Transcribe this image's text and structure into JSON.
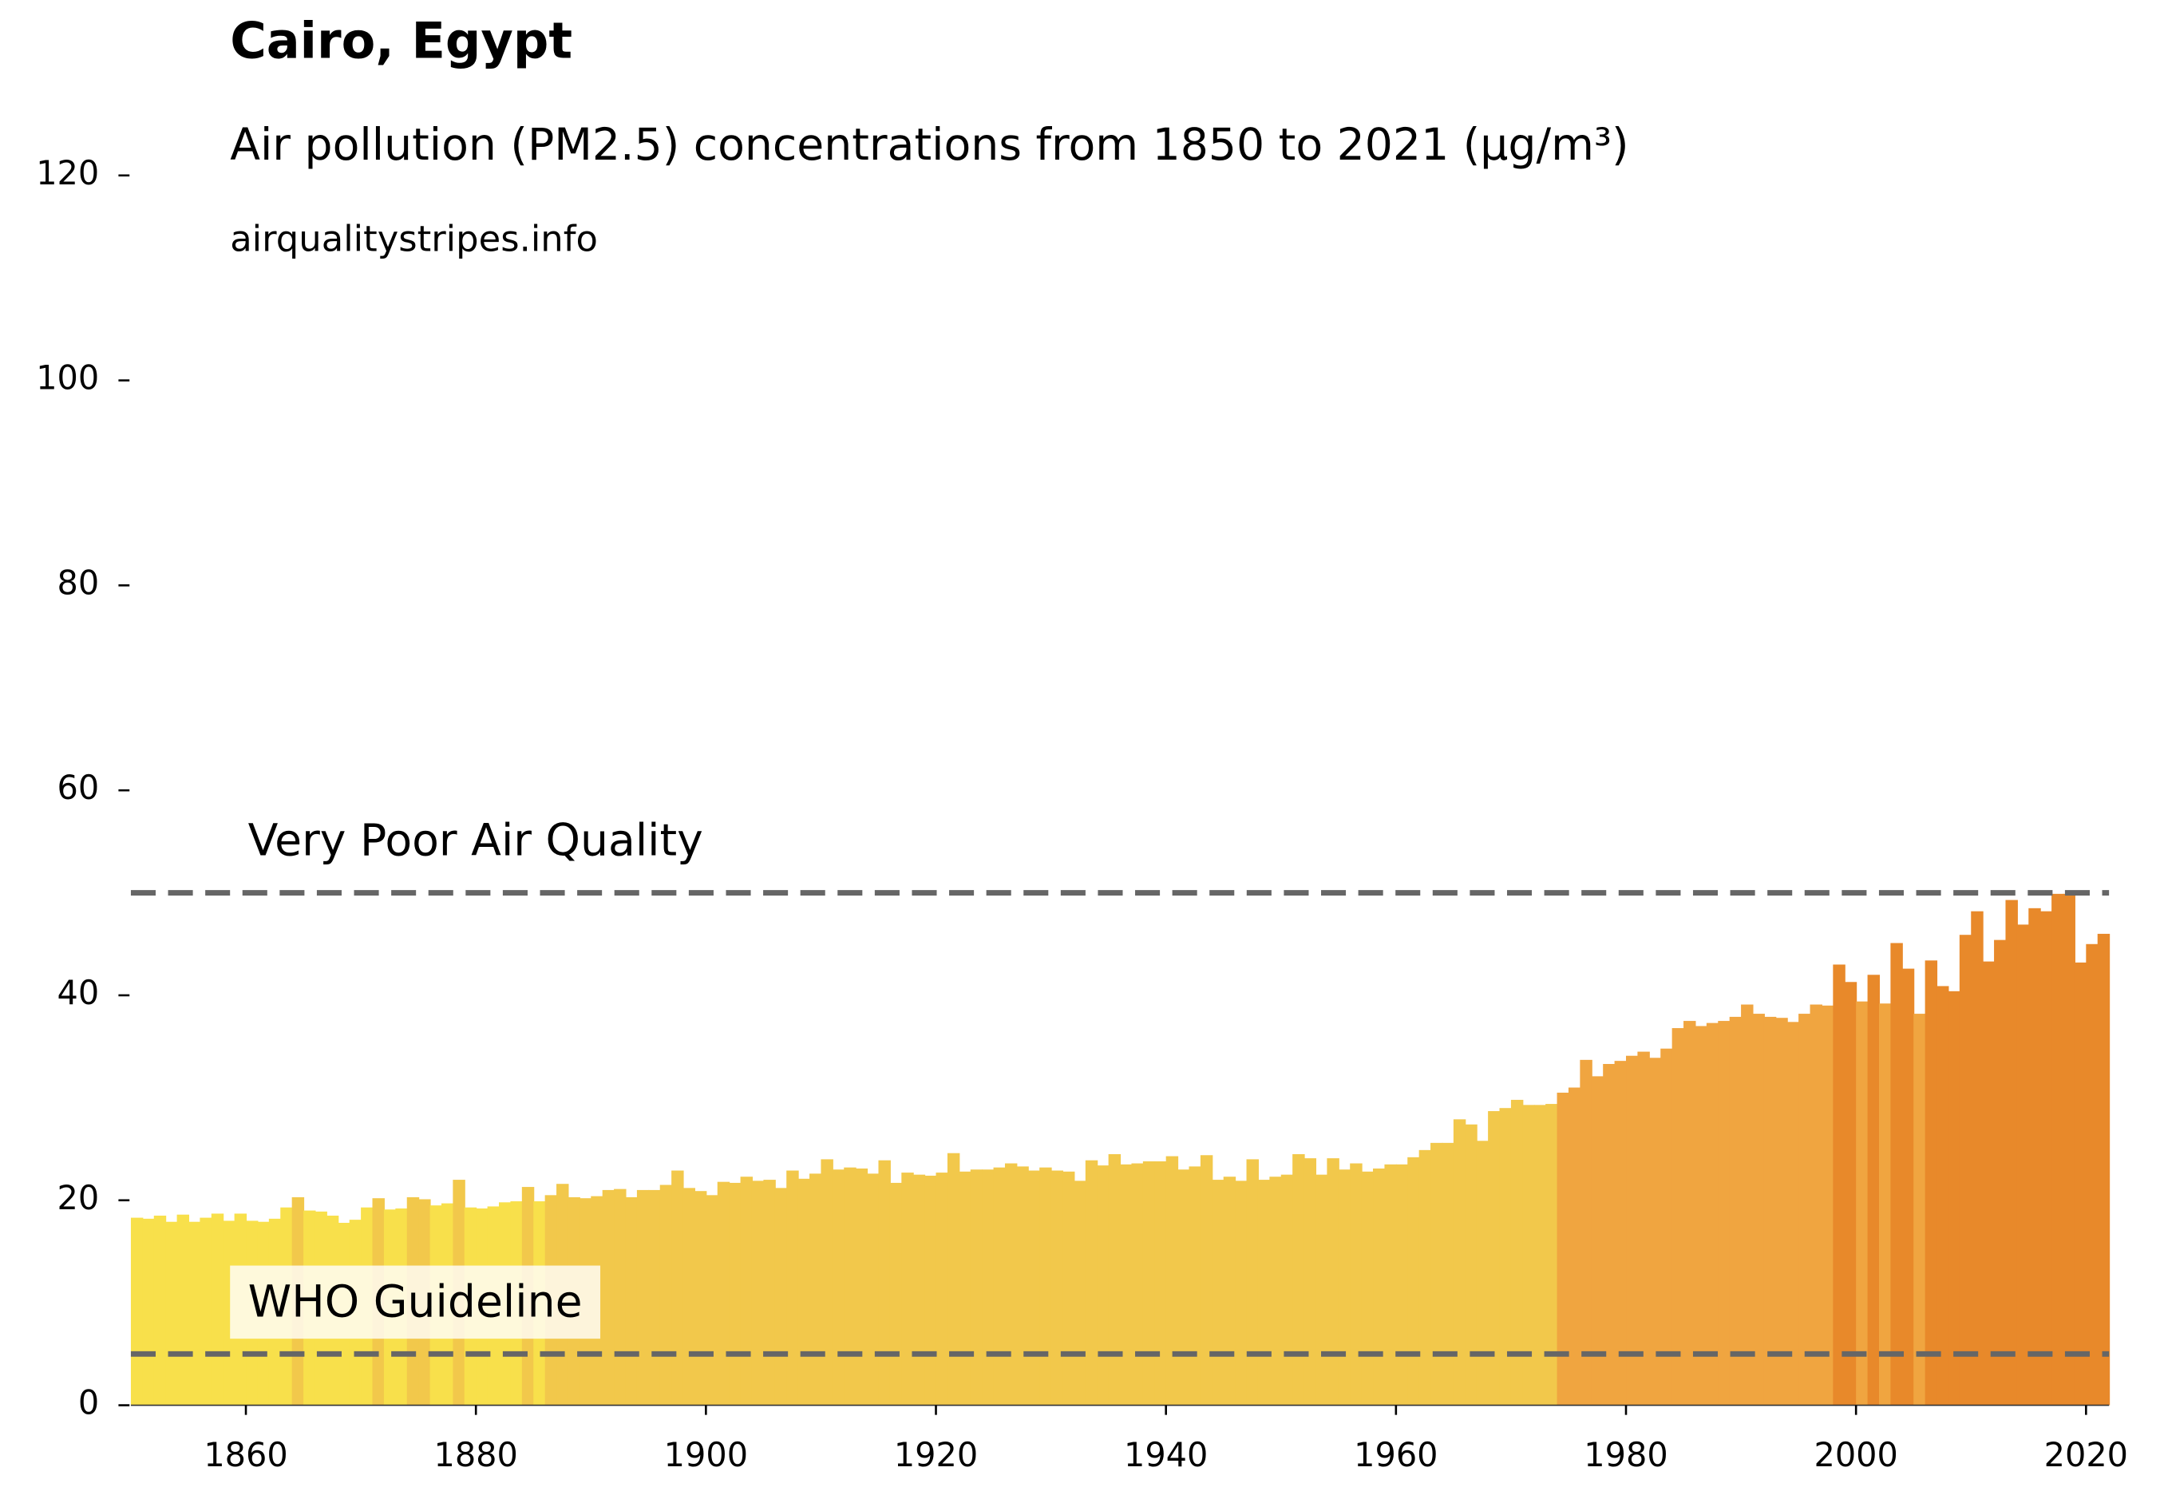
{
  "chart_data": {
    "type": "bar",
    "title": "Cairo, Egypt",
    "subtitle": "Air pollution (PM2.5) concentrations from 1850 to 2021 (µg/m³)",
    "source": "airqualitystripes.info",
    "x": [
      1850,
      1851,
      1852,
      1853,
      1854,
      1855,
      1856,
      1857,
      1858,
      1859,
      1860,
      1861,
      1862,
      1863,
      1864,
      1865,
      1866,
      1867,
      1868,
      1869,
      1870,
      1871,
      1872,
      1873,
      1874,
      1875,
      1876,
      1877,
      1878,
      1879,
      1880,
      1881,
      1882,
      1883,
      1884,
      1885,
      1886,
      1887,
      1888,
      1889,
      1890,
      1891,
      1892,
      1893,
      1894,
      1895,
      1896,
      1897,
      1898,
      1899,
      1900,
      1901,
      1902,
      1903,
      1904,
      1905,
      1906,
      1907,
      1908,
      1909,
      1910,
      1911,
      1912,
      1913,
      1914,
      1915,
      1916,
      1917,
      1918,
      1919,
      1920,
      1921,
      1922,
      1923,
      1924,
      1925,
      1926,
      1927,
      1928,
      1929,
      1930,
      1931,
      1932,
      1933,
      1934,
      1935,
      1936,
      1937,
      1938,
      1939,
      1940,
      1941,
      1942,
      1943,
      1944,
      1945,
      1946,
      1947,
      1948,
      1949,
      1950,
      1951,
      1952,
      1953,
      1954,
      1955,
      1956,
      1957,
      1958,
      1959,
      1960,
      1961,
      1962,
      1963,
      1964,
      1965,
      1966,
      1967,
      1968,
      1969,
      1970,
      1971,
      1972,
      1973,
      1974,
      1975,
      1976,
      1977,
      1978,
      1979,
      1980,
      1981,
      1982,
      1983,
      1984,
      1985,
      1986,
      1987,
      1988,
      1989,
      1990,
      1991,
      1992,
      1993,
      1994,
      1995,
      1996,
      1997,
      1998,
      1999,
      2000,
      2001,
      2002,
      2003,
      2004,
      2005,
      2006,
      2007,
      2008,
      2009,
      2010,
      2011,
      2012,
      2013,
      2014,
      2015,
      2016,
      2017,
      2018,
      2019,
      2020,
      2021
    ],
    "values": [
      18.3,
      18.2,
      18.5,
      17.9,
      18.6,
      17.9,
      18.3,
      18.7,
      18.0,
      18.7,
      18.0,
      17.9,
      18.2,
      19.3,
      20.3,
      19.0,
      18.9,
      18.5,
      17.8,
      18.1,
      19.3,
      20.2,
      19.1,
      19.2,
      20.3,
      20.1,
      19.5,
      19.7,
      22.0,
      19.3,
      19.2,
      19.4,
      19.8,
      19.9,
      21.3,
      19.9,
      20.5,
      21.6,
      20.3,
      20.2,
      20.4,
      21.0,
      21.1,
      20.3,
      21.0,
      21.0,
      21.5,
      22.9,
      21.2,
      20.9,
      20.5,
      21.8,
      21.7,
      22.3,
      21.9,
      22.0,
      21.2,
      22.9,
      22.1,
      22.6,
      24.0,
      23.0,
      23.2,
      23.1,
      22.6,
      23.9,
      21.7,
      22.7,
      22.5,
      22.4,
      22.7,
      24.6,
      22.8,
      23.0,
      23.0,
      23.2,
      23.6,
      23.3,
      22.9,
      23.2,
      22.9,
      22.8,
      21.9,
      23.9,
      23.4,
      24.5,
      23.5,
      23.6,
      23.8,
      23.8,
      24.3,
      23.0,
      23.3,
      24.4,
      22.0,
      22.3,
      21.9,
      24.0,
      22.0,
      22.3,
      22.5,
      24.5,
      24.1,
      22.5,
      24.1,
      23.0,
      23.6,
      22.8,
      23.1,
      23.5,
      23.5,
      24.2,
      24.9,
      25.6,
      25.6,
      27.9,
      27.4,
      25.8,
      28.7,
      29.0,
      29.8,
      29.3,
      29.3,
      29.4,
      30.5,
      31.0,
      33.7,
      32.1,
      33.3,
      33.6,
      34.1,
      34.5,
      33.9,
      34.8,
      36.8,
      37.5,
      37.0,
      37.3,
      37.5,
      37.9,
      39.1,
      38.2,
      37.9,
      37.8,
      37.4,
      38.2,
      39.1,
      39.0,
      43.0,
      41.3,
      39.4,
      42.0,
      39.2,
      45.1,
      42.6,
      38.2,
      43.4,
      40.9,
      40.4,
      45.9,
      48.2,
      43.3,
      45.4,
      49.3,
      46.9,
      48.5,
      48.2,
      49.9,
      49.9,
      43.2,
      45.0,
      46.0
    ],
    "colors": [
      "#f8e04b",
      "#f8e04b",
      "#f8e04b",
      "#f8e04b",
      "#f8e04b",
      "#f8e04b",
      "#f8e04b",
      "#f8e04b",
      "#f8e04b",
      "#f8e04b",
      "#f8e04b",
      "#f8e04b",
      "#f8e04b",
      "#f8e04b",
      "#f2c84b",
      "#f8e04b",
      "#f8e04b",
      "#f8e04b",
      "#f8e04b",
      "#f8e04b",
      "#f8e04b",
      "#f2c84b",
      "#f8e04b",
      "#f8e04b",
      "#f2c84b",
      "#f2c84b",
      "#f8e04b",
      "#f8e04b",
      "#f2c84b",
      "#f8e04b",
      "#f8e04b",
      "#f8e04b",
      "#f8e04b",
      "#f8e04b",
      "#f2c84b",
      "#f8e04b",
      "#f2c84b",
      "#f2c84b",
      "#f2c84b",
      "#f2c84b",
      "#f2c84b",
      "#f2c84b",
      "#f2c84b",
      "#f2c84b",
      "#f2c84b",
      "#f2c84b",
      "#f2c84b",
      "#f2c84b",
      "#f2c84b",
      "#f2c84b",
      "#f2c84b",
      "#f2c84b",
      "#f2c84b",
      "#f2c84b",
      "#f2c84b",
      "#f2c84b",
      "#f2c84b",
      "#f2c84b",
      "#f2c84b",
      "#f2c84b",
      "#f2c84b",
      "#f2c84b",
      "#f2c84b",
      "#f2c84b",
      "#f2c84b",
      "#f2c84b",
      "#f2c84b",
      "#f2c84b",
      "#f2c84b",
      "#f2c84b",
      "#f2c84b",
      "#f2c84b",
      "#f2c84b",
      "#f2c84b",
      "#f2c84b",
      "#f2c84b",
      "#f2c84b",
      "#f2c84b",
      "#f2c84b",
      "#f2c84b",
      "#f2c84b",
      "#f2c84b",
      "#f2c84b",
      "#f2c84b",
      "#f2c84b",
      "#f2c84b",
      "#f2c84b",
      "#f2c84b",
      "#f2c84b",
      "#f2c84b",
      "#f2c84b",
      "#f2c84b",
      "#f2c84b",
      "#f2c84b",
      "#f2c84b",
      "#f2c84b",
      "#f2c84b",
      "#f2c84b",
      "#f2c84b",
      "#f2c84b",
      "#f2c84b",
      "#f2c84b",
      "#f2c84b",
      "#f2c84b",
      "#f2c84b",
      "#f2c84b",
      "#f2c84b",
      "#f2c84b",
      "#f2c84b",
      "#f2c84b",
      "#f2c84b",
      "#f2c84b",
      "#f2c84b",
      "#f2c84b",
      "#f2c84b",
      "#f2c84b",
      "#f2c84b",
      "#f2c84b",
      "#f2c84b",
      "#f2c84b",
      "#f2c84b",
      "#f2c84b",
      "#f2c84b",
      "#f2c84b",
      "#f0a540",
      "#f0a540",
      "#f0a540",
      "#f0a540",
      "#f0a540",
      "#f0a540",
      "#f0a540",
      "#f0a540",
      "#f0a540",
      "#f0a540",
      "#f0a540",
      "#f0a540",
      "#f0a540",
      "#f0a540",
      "#f0a540",
      "#f0a540",
      "#f0a540",
      "#f0a540",
      "#f0a540",
      "#f0a540",
      "#f0a540",
      "#f0a540",
      "#f0a540",
      "#f0a540",
      "#e8892a",
      "#e8892a",
      "#f0a540",
      "#e8892a",
      "#f0a540",
      "#e8892a",
      "#e8892a",
      "#f0a540",
      "#e8892a",
      "#e8892a",
      "#e8892a",
      "#e8892a",
      "#e8892a",
      "#e8892a",
      "#e8892a",
      "#e8892a",
      "#e8892a",
      "#e8892a",
      "#e8892a",
      "#e8892a",
      "#e8892a",
      "#e8892a",
      "#e8892a",
      "#e8892a"
    ],
    "hlines": [
      {
        "value": 50,
        "label": "Very Poor Air Quality"
      },
      {
        "value": 5,
        "label": "WHO Guideline"
      }
    ],
    "xlim": [
      1850,
      2022
    ],
    "ylim": [
      0,
      125
    ],
    "xticks": [
      1860,
      1880,
      1900,
      1920,
      1940,
      1960,
      1980,
      2000,
      2020
    ],
    "yticks": [
      0,
      20,
      40,
      60,
      80,
      100,
      120
    ]
  }
}
